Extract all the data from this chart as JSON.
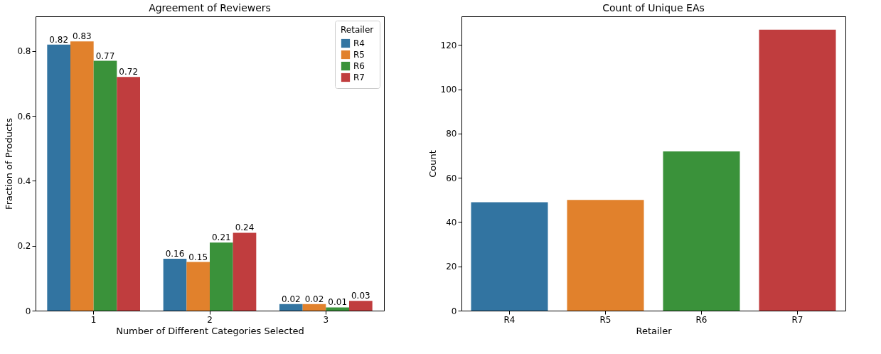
{
  "chart_data": [
    {
      "type": "bar",
      "title": "Agreement of Reviewers",
      "xlabel": "Number of Different Categories Selected",
      "ylabel": "Fraction of Products",
      "categories": [
        "1",
        "2",
        "3"
      ],
      "series": [
        {
          "name": "R4",
          "color": "#3274a1",
          "values": [
            0.82,
            0.16,
            0.02
          ]
        },
        {
          "name": "R5",
          "color": "#e1812c",
          "values": [
            0.83,
            0.15,
            0.02
          ]
        },
        {
          "name": "R6",
          "color": "#3a923a",
          "values": [
            0.77,
            0.21,
            0.01
          ]
        },
        {
          "name": "R7",
          "color": "#c03d3e",
          "values": [
            0.72,
            0.24,
            0.03
          ]
        }
      ],
      "ylim": [
        0,
        0.907
      ],
      "yticks": [
        0,
        0.2,
        0.4,
        0.6,
        0.8
      ],
      "data_labels": true,
      "legend": "top right",
      "legend_title": "Retailer",
      "grid": false
    },
    {
      "type": "bar",
      "title": "Count of Unique EAs",
      "xlabel": "Retailer",
      "ylabel": "Count",
      "categories": [
        "R4",
        "R5",
        "R6",
        "R7"
      ],
      "values": [
        49,
        50,
        72,
        127
      ],
      "colors": [
        "#3274a1",
        "#e1812c",
        "#3a923a",
        "#c03d3e"
      ],
      "ylim": [
        0,
        133
      ],
      "yticks": [
        0,
        20,
        40,
        60,
        80,
        100,
        120
      ],
      "grid": false
    }
  ]
}
